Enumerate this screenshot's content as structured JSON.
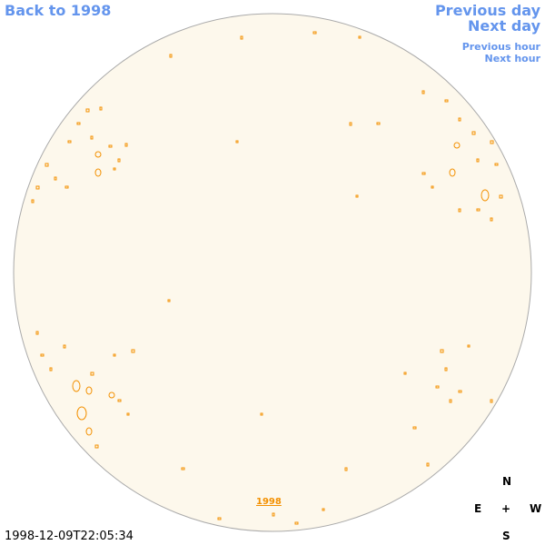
{
  "nav": {
    "back": "Back to 1998",
    "previous_day": "Previous day",
    "next_day": "Next day",
    "previous_hour": "Previous hour",
    "next_hour": "Next hour"
  },
  "image": {
    "year_link": "1998",
    "timestamp": "1998-12-09T22:05:34"
  },
  "compass": {
    "north": "N",
    "east": "E",
    "center": "+",
    "west": "W",
    "south": "S"
  }
}
